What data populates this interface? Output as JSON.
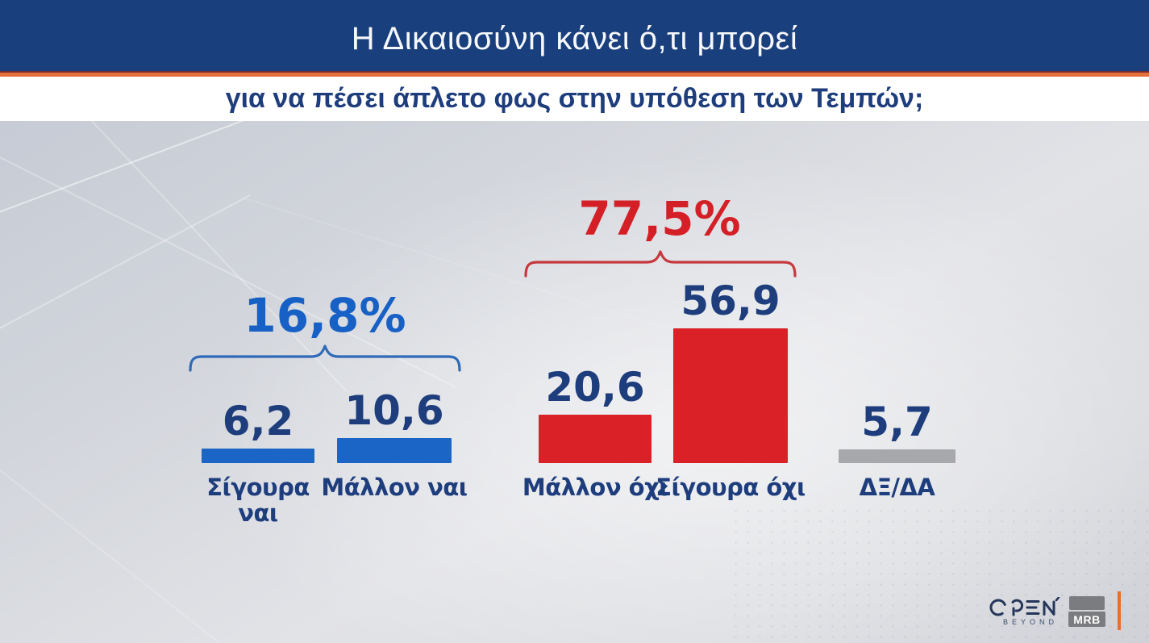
{
  "header": {
    "title": "Η Δικαιοσύνη κάνει ό,τι μπορεί",
    "subtitle": "για να πέσει άπλετο φως στην υπόθεση των Τεμπών;"
  },
  "chart_data": {
    "type": "bar",
    "title": "Η Δικαιοσύνη κάνει ό,τι μπορεί για να πέσει άπλετο φως στην υπόθεση των Τεμπών;",
    "unit": "%",
    "categories": [
      "Σίγουρα ναι",
      "Μάλλον ναι",
      "Μάλλον όχι",
      "Σίγουρα όχι",
      "ΔΞ/ΔΑ"
    ],
    "values": [
      6.2,
      10.6,
      20.6,
      56.9,
      5.7
    ],
    "bars": [
      {
        "value": 6.2,
        "display": "6,2",
        "category": "Σίγουρα ναι",
        "color": "#1a65c5"
      },
      {
        "value": 10.6,
        "display": "10,6",
        "category": "Μάλλον ναι",
        "color": "#1a65c5"
      },
      {
        "value": 20.6,
        "display": "20,6",
        "category": "Μάλλον όχι",
        "color": "#d92127"
      },
      {
        "value": 56.9,
        "display": "56,9",
        "category": "Σίγουρα όχι",
        "color": "#d92127"
      },
      {
        "value": 5.7,
        "display": "5,7",
        "category": "ΔΞ/ΔΑ",
        "color": "#a7a8ab"
      }
    ],
    "group_totals": [
      {
        "display": "16,8%",
        "value": 16.8,
        "members": [
          "Σίγουρα ναι",
          "Μάλλον ναι"
        ],
        "color": "#1760c6",
        "bracket_color": "#2f6ab8"
      },
      {
        "display": "77,5%",
        "value": 77.5,
        "members": [
          "Μάλλον όχι",
          "Σίγουρα όχι"
        ],
        "color": "#d51f27",
        "bracket_color": "#c5383e"
      }
    ],
    "colors": {
      "yes_blue": "#1a65c5",
      "no_red": "#d92127",
      "dk_gray": "#a7a8ab",
      "label_navy": "#1e3d7c",
      "header_blue": "#1a3f7d",
      "accent_orange": "#e8713a"
    },
    "layout": {
      "grid": false,
      "legend": false,
      "value_labels_above_bars": true,
      "category_labels_below_bars": true
    },
    "ylim": [
      0,
      60
    ]
  },
  "footer": {
    "channel": "OPEN",
    "channel_tagline": "BEYOND",
    "agency": "MRB"
  }
}
